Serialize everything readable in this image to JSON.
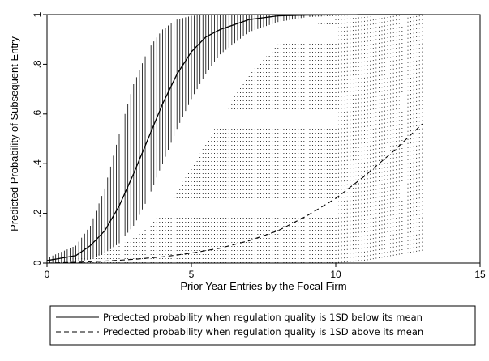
{
  "chart_data": {
    "type": "line",
    "title": "",
    "xlabel": "Prior Year Entries by the Focal Firm",
    "ylabel": "Predicted Probability of Subsequent Entry",
    "xlim": [
      0,
      15
    ],
    "ylim": [
      0,
      1
    ],
    "xticks": [
      "0",
      "5",
      "10",
      "15"
    ],
    "yticks": [
      "0",
      ".2",
      ".4",
      ".6",
      ".8",
      "1"
    ],
    "grid": false,
    "legend_position": "bottom",
    "series": [
      {
        "name": "Predected probability when regulation quality is 1SD below its mean",
        "line_style": "solid",
        "interval_style": "solid vertical bars",
        "x": [
          0,
          1,
          1.5,
          2,
          2.5,
          3,
          3.5,
          4,
          4.5,
          5,
          5.5,
          6,
          7,
          8,
          9,
          10,
          11,
          12,
          13
        ],
        "y": [
          0.01,
          0.03,
          0.07,
          0.13,
          0.23,
          0.36,
          0.5,
          0.64,
          0.76,
          0.85,
          0.91,
          0.94,
          0.98,
          0.995,
          0.998,
          0.999,
          1,
          1,
          1
        ],
        "ci_lower": [
          0.0,
          0.005,
          0.015,
          0.04,
          0.08,
          0.15,
          0.26,
          0.4,
          0.54,
          0.66,
          0.76,
          0.84,
          0.93,
          0.97,
          0.99,
          0.995,
          0.998,
          0.999,
          0.999
        ],
        "ci_upper": [
          0.02,
          0.07,
          0.15,
          0.3,
          0.52,
          0.72,
          0.86,
          0.94,
          0.98,
          0.995,
          1,
          1,
          1,
          1,
          1,
          1,
          1,
          1,
          1
        ]
      },
      {
        "name": "Predected probability when regulation quality is 1SD above its mean",
        "line_style": "dashed",
        "interval_style": "dotted vertical bars",
        "x": [
          0,
          1,
          2,
          3,
          4,
          5,
          6,
          7,
          8,
          9,
          10,
          11,
          12,
          13
        ],
        "y": [
          0.0,
          0.003,
          0.008,
          0.015,
          0.025,
          0.04,
          0.06,
          0.09,
          0.13,
          0.19,
          0.26,
          0.35,
          0.45,
          0.56
        ],
        "ci_lower": [
          0.0,
          0.0,
          0.0,
          0.0,
          0.0,
          0.0,
          0.0,
          0.0,
          0.0,
          0.0,
          0.0,
          0.01,
          0.03,
          0.05
        ],
        "ci_upper": [
          0.01,
          0.02,
          0.04,
          0.1,
          0.2,
          0.38,
          0.58,
          0.76,
          0.88,
          0.95,
          0.98,
          0.99,
          1,
          1
        ]
      }
    ]
  }
}
